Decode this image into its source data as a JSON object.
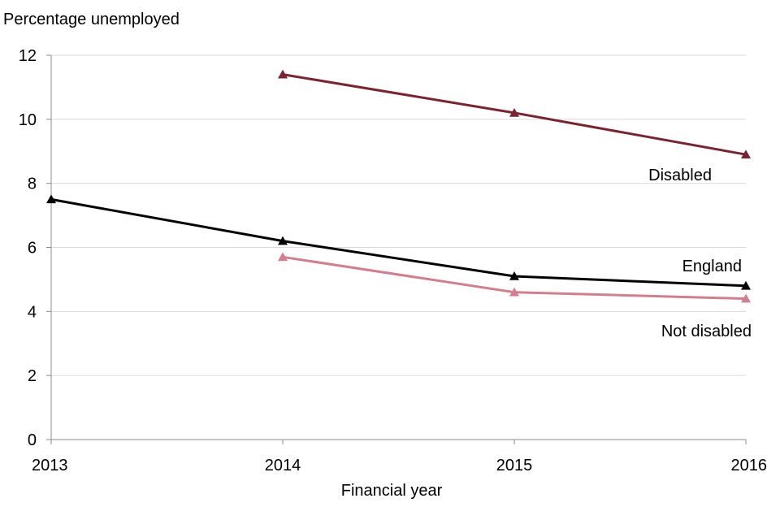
{
  "chart_data": {
    "type": "line",
    "title": "",
    "ylabel": "Percentage unemployed",
    "xlabel": "Financial year",
    "x": [
      2013,
      2014,
      2015,
      2016
    ],
    "xticks": [
      "2013",
      "2014",
      "2015",
      "2016"
    ],
    "yticks": [
      "0",
      "2",
      "4",
      "6",
      "8",
      "10",
      "12"
    ],
    "ylim": [
      0,
      12
    ],
    "grid": true,
    "series": [
      {
        "name": "Disabled",
        "color": "#7b2430",
        "marker": "triangle",
        "values": [
          null,
          11.4,
          10.2,
          8.9
        ]
      },
      {
        "name": "England",
        "color": "#000000",
        "marker": "triangle",
        "values": [
          7.5,
          6.2,
          5.1,
          4.8
        ]
      },
      {
        "name": "Not disabled",
        "color": "#d47d8c",
        "marker": "triangle",
        "values": [
          null,
          5.7,
          4.6,
          4.4
        ]
      }
    ]
  }
}
